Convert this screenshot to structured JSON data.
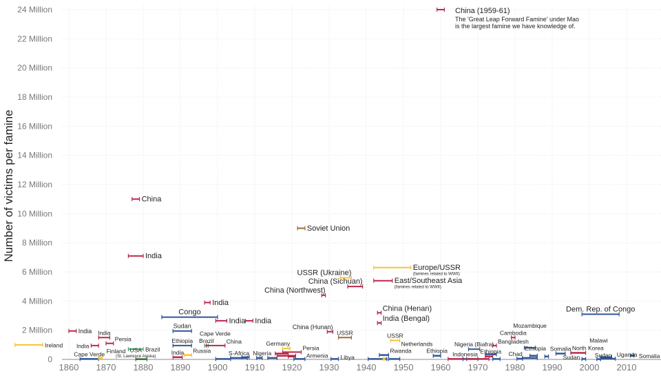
{
  "chart_data": {
    "type": "range-timeline",
    "title": "",
    "xlabel": "",
    "ylabel": "Number of victims per famine",
    "xlim": [
      1845,
      2015
    ],
    "ylim": [
      0,
      24
    ],
    "y_unit": "Million",
    "grid": true,
    "x_ticks": [
      "1860",
      "1870",
      "1880",
      "1890",
      "1900",
      "1910",
      "1920",
      "1930",
      "1940",
      "1950",
      "1960",
      "1970",
      "1980",
      "1990",
      "2000",
      "2010"
    ],
    "y_ticks": [
      "0",
      "2 Million",
      "4 Million",
      "6 Million",
      "8 Million",
      "10 Million",
      "12 Million",
      "14 Million",
      "16 Million",
      "18 Million",
      "20 Million",
      "22 Million",
      "24 Million"
    ],
    "colors": {
      "red": "#b8284a",
      "blue": "#2f5597",
      "yellow": "#f2c530",
      "green": "#3fae67",
      "brown": "#9b6a3c",
      "darkgreen": "#2e6b3b"
    },
    "annotation": {
      "title": "China (1959-61)",
      "lines": [
        "The 'Great Leap Forward Famine' under Mao",
        "is the largest famine we have knowledge of."
      ]
    },
    "famines": [
      {
        "label": "",
        "start": 1959,
        "end": 1961,
        "victims": 24,
        "color": "red",
        "label_position": "none"
      },
      {
        "label": "China",
        "start": 1877,
        "end": 1879,
        "victims": 11,
        "color": "red",
        "label_position": "right"
      },
      {
        "label": "India",
        "start": 1876,
        "end": 1880,
        "victims": 7.1,
        "color": "red",
        "label_position": "right"
      },
      {
        "label": "Soviet Union",
        "start": 1921.5,
        "end": 1923.5,
        "victims": 9,
        "color": "brown",
        "label_position": "right"
      },
      {
        "label": "Europe/USSR",
        "sublabel": "(famines related to WWII)",
        "start": 1942,
        "end": 1952,
        "victims": 6.3,
        "color": "yellow",
        "label_position": "right"
      },
      {
        "label": "East/Southeast Asia",
        "sublabel": "(famines related to WWII)",
        "start": 1942,
        "end": 1947,
        "victims": 5.4,
        "color": "red",
        "label_position": "right"
      },
      {
        "label": "USSR (Ukraine)",
        "start": 1933,
        "end": 1936,
        "victims": 5.6,
        "color": "yellow",
        "label_position": "above-left"
      },
      {
        "label": "China (Sichuan)",
        "start": 1935,
        "end": 1939,
        "victims": 5.0,
        "color": "red",
        "label_position": "above-left"
      },
      {
        "label": "China (Northwest)",
        "start": 1928,
        "end": 1929,
        "victims": 4.4,
        "color": "red",
        "label_position": "above-left"
      },
      {
        "label": "India",
        "start": 1896.5,
        "end": 1898,
        "victims": 3.9,
        "color": "red",
        "label_position": "right"
      },
      {
        "label": "Congo",
        "start": 1885,
        "end": 1900,
        "victims": 2.9,
        "color": "blue",
        "label_position": "above"
      },
      {
        "label": "India",
        "start": 1899.5,
        "end": 1902.5,
        "victims": 2.65,
        "color": "red",
        "label_position": "right"
      },
      {
        "label": "India",
        "start": 1907.5,
        "end": 1909.5,
        "victims": 2.65,
        "color": "red",
        "label_position": "right"
      },
      {
        "label": "India",
        "start": 1860,
        "end": 1862,
        "victims": 1.95,
        "color": "red",
        "label_position": "right"
      },
      {
        "label": "Ireland",
        "start": 1845.5,
        "end": 1853,
        "victims": 1.0,
        "color": "yellow",
        "label_position": "right"
      },
      {
        "label": "India",
        "start": 1868,
        "end": 1871,
        "victims": 1.5,
        "color": "red",
        "label_position": "above"
      },
      {
        "label": "India",
        "start": 1866,
        "end": 1868,
        "victims": 0.95,
        "color": "red",
        "label_position": "left"
      },
      {
        "label": "Persia",
        "start": 1870,
        "end": 1872,
        "victims": 1.1,
        "color": "red",
        "label_position": "above-right"
      },
      {
        "label": "Brazil",
        "start": 1876,
        "end": 1880,
        "victims": 0.7,
        "color": "green",
        "label_position": "right"
      },
      {
        "label": "USA",
        "sublabel": "(St. Lawrence Alaska)",
        "start": 1878,
        "end": 1881,
        "victims": 0.02,
        "color": "darkgreen",
        "label_position": "above"
      },
      {
        "label": "Cape Verde",
        "start": 1863,
        "end": 1868,
        "victims": 0.03,
        "color": "blue",
        "label_position": "above"
      },
      {
        "label": "Finland",
        "start": 1868,
        "end": 1869,
        "victims": 0.1,
        "color": "yellow",
        "label_position": "above-right"
      },
      {
        "label": "Sudan",
        "start": 1888,
        "end": 1893,
        "victims": 1.95,
        "color": "blue",
        "label_position": "above"
      },
      {
        "label": "Ethiopia",
        "start": 1888,
        "end": 1893,
        "victims": 0.95,
        "color": "blue",
        "label_position": "above"
      },
      {
        "label": "Brazil",
        "start": 1896.5,
        "end": 1897.5,
        "victims": 0.95,
        "color": "green",
        "label_position": "above"
      },
      {
        "label": "China",
        "start": 1897,
        "end": 1902,
        "victims": 0.95,
        "color": "red",
        "label_position": "above-right"
      },
      {
        "label": "India",
        "start": 1888,
        "end": 1890.5,
        "victims": 0.15,
        "color": "red",
        "label_position": "above"
      },
      {
        "label": "Russia",
        "start": 1891,
        "end": 1893,
        "victims": 0.3,
        "color": "yellow",
        "label_position": "above-right"
      },
      {
        "label": "Cape Verde",
        "start": 1899.5,
        "end": 1903.5,
        "victims": 0.03,
        "color": "blue",
        "label_position": "above-left"
      },
      {
        "label": "S-Africa",
        "start": 1903.5,
        "end": 1908,
        "victims": 0.1,
        "color": "blue",
        "label_position": "above"
      },
      {
        "label": "",
        "start": 1906.5,
        "end": 1908.5,
        "victims": 0.15,
        "color": "blue",
        "label_position": "none"
      },
      {
        "label": "Nigeria",
        "start": 1910.5,
        "end": 1912,
        "victims": 0.1,
        "color": "blue",
        "label_position": "above"
      },
      {
        "label": "",
        "start": 1913.5,
        "end": 1916,
        "victims": 0.1,
        "color": "blue",
        "label_position": "none"
      },
      {
        "label": "Germany",
        "start": 1917.5,
        "end": 1919.5,
        "victims": 0.75,
        "color": "yellow",
        "label_position": "above-left"
      },
      {
        "label": "Persia",
        "start": 1917.5,
        "end": 1922.5,
        "victims": 0.5,
        "color": "red",
        "label_position": "above-right"
      },
      {
        "label": "",
        "start": 1915.5,
        "end": 1919,
        "victims": 0.4,
        "color": "red",
        "label_position": "none"
      },
      {
        "label": "",
        "start": 1916,
        "end": 1921,
        "victims": 0.25,
        "color": "red",
        "label_position": "none"
      },
      {
        "label": "",
        "start": 1919,
        "end": 1921,
        "victims": 0.2,
        "color": "red",
        "label_position": "none"
      },
      {
        "label": "Armenia",
        "start": 1920.5,
        "end": 1923.5,
        "victims": 0.03,
        "color": "blue",
        "label_position": "above-right"
      },
      {
        "label": "China (Hunan)",
        "start": 1929.5,
        "end": 1931,
        "victims": 1.9,
        "color": "red",
        "label_position": "above-left"
      },
      {
        "label": "USSR",
        "start": 1932.5,
        "end": 1936,
        "victims": 1.5,
        "color": "brown",
        "label_position": "above"
      },
      {
        "label": "Libya",
        "start": 1930.5,
        "end": 1932.5,
        "victims": 0.03,
        "color": "blue",
        "label_position": "right"
      },
      {
        "label": "",
        "start": 1940.5,
        "end": 1945.5,
        "victims": 0.03,
        "color": "blue",
        "label_position": "none"
      },
      {
        "label": "Rwanda",
        "start": 1943.5,
        "end": 1946,
        "victims": 0.3,
        "color": "blue",
        "label_position": "above-right"
      },
      {
        "label": "",
        "start": 1944.5,
        "end": 1945,
        "victims": 0.05,
        "color": "yellow",
        "label_position": "none"
      },
      {
        "label": "Netherlands",
        "start": 1946,
        "end": 1949,
        "victims": 0.03,
        "color": "blue",
        "label_position": "above-right"
      },
      {
        "label": "USSR",
        "start": 1946.5,
        "end": 1949,
        "victims": 1.3,
        "color": "yellow",
        "label_position": "above"
      },
      {
        "label": "China (Henan)",
        "start": 1943,
        "end": 1944,
        "victims": 3.2,
        "color": "red",
        "label_position": "above-right"
      },
      {
        "label": "India (Bengal)",
        "start": 1943,
        "end": 1944,
        "victims": 2.5,
        "color": "red",
        "label_position": "above-right"
      },
      {
        "label": "Ethiopia",
        "start": 1958,
        "end": 1960,
        "victims": 0.25,
        "color": "blue",
        "label_position": "above"
      },
      {
        "label": "Indonesia",
        "start": 1962,
        "end": 1966,
        "victims": 0.03,
        "color": "red",
        "label_position": "above"
      },
      {
        "label": "",
        "start": 1966,
        "end": 1970,
        "victims": 0.03,
        "color": "blue",
        "label_position": "none"
      },
      {
        "label": "",
        "start": 1967,
        "end": 1973,
        "victims": 0.03,
        "color": "red",
        "label_position": "none"
      },
      {
        "label": "Nigeria (Biafra)",
        "start": 1967.5,
        "end": 1970.5,
        "victims": 0.7,
        "color": "blue",
        "label_position": "above"
      },
      {
        "label": "Ethiopia",
        "start": 1972,
        "end": 1975,
        "victims": 0.35,
        "color": "blue",
        "label_position": "above"
      },
      {
        "label": "",
        "start": 1972,
        "end": 1974,
        "victims": 0.2,
        "color": "red",
        "label_position": "none"
      },
      {
        "label": "",
        "start": 1974,
        "end": 1976,
        "victims": 0.03,
        "color": "blue",
        "label_position": "none"
      },
      {
        "label": "Bangladesh",
        "start": 1974,
        "end": 1975,
        "victims": 0.95,
        "color": "red",
        "label_position": "above-right"
      },
      {
        "label": "Cambodia",
        "start": 1979,
        "end": 1980,
        "victims": 1.5,
        "color": "red",
        "label_position": "above"
      },
      {
        "label": "Chad",
        "start": 1980.5,
        "end": 1982,
        "victims": 0.05,
        "color": "blue",
        "label_position": "above-left"
      },
      {
        "label": "Mozambique",
        "start": 1982,
        "end": 1986,
        "victims": 0.1,
        "color": "blue",
        "label_position": "above"
      },
      {
        "label": "Ethiopia",
        "start": 1982.5,
        "end": 1985.5,
        "victims": 0.8,
        "color": "blue",
        "label_position": "above"
      },
      {
        "label": "",
        "start": 1984,
        "end": 1986,
        "victims": 0.25,
        "color": "blue",
        "label_position": "none"
      },
      {
        "label": "",
        "start": 1988,
        "end": 1989,
        "victims": 0.2,
        "color": "blue",
        "label_position": "none"
      },
      {
        "label": "Somalia",
        "start": 1991,
        "end": 1993.5,
        "victims": 0.4,
        "color": "blue",
        "label_position": "above"
      },
      {
        "label": "North Korea",
        "start": 1995,
        "end": 1999,
        "victims": 0.45,
        "color": "red",
        "label_position": "above"
      },
      {
        "label": "Sudan",
        "start": 1998,
        "end": 1999,
        "victims": 0.03,
        "color": "blue",
        "label_position": "left"
      },
      {
        "label": "Dem. Rep. of Congo",
        "start": 1998,
        "end": 2008,
        "victims": 3.1,
        "color": "blue",
        "label_position": "above"
      },
      {
        "label": "Sudan",
        "start": 2003,
        "end": 2006,
        "victims": 0.15,
        "color": "blue",
        "label_position": "above-left"
      },
      {
        "label": "Malawi",
        "start": 2002,
        "end": 2003,
        "victims": 0.02,
        "color": "blue",
        "label_position": "below"
      },
      {
        "label": "Uganda",
        "start": 2003,
        "end": 2007,
        "victims": 0.05,
        "color": "blue",
        "label_position": "above-right"
      },
      {
        "label": "Somalia",
        "start": 2011,
        "end": 2012,
        "victims": 0.26,
        "color": "blue",
        "label_position": "right"
      }
    ]
  }
}
